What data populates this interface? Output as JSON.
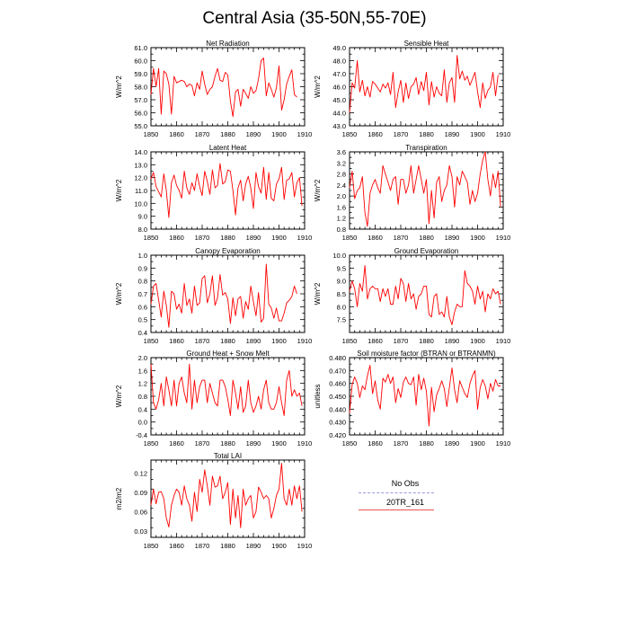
{
  "title": "Central Asia (35-50N,55-70E)",
  "legend": {
    "entries": [
      {
        "label": "No Obs",
        "color": "#9999dd",
        "dash": true
      },
      {
        "label": "20TR_161",
        "color": "#e8564f",
        "dash": false
      }
    ]
  },
  "chart_data": [
    {
      "type": "line",
      "title": "Net Radiation",
      "xlabel": "",
      "ylabel": "W/m^2",
      "xlim": [
        1850,
        1910
      ],
      "ylim": [
        55.0,
        61.0
      ],
      "xticks": [
        1850,
        1860,
        1870,
        1880,
        1890,
        1900,
        1910
      ],
      "yticks": [
        55.0,
        56.0,
        57.0,
        58.0,
        59.0,
        60.0,
        61.0
      ],
      "tick_decimals": 1,
      "series": [
        {
          "color": "#ff0000",
          "x_start": 1850,
          "x_step": 1,
          "values": [
            57.4,
            59.4,
            58.0,
            59.4,
            55.9,
            59.2,
            59.0,
            58.2,
            55.9,
            58.8,
            58.3,
            58.4,
            58.5,
            58.4,
            58.0,
            58.2,
            58.1,
            57.3,
            58.3,
            57.8,
            59.2,
            58.2,
            57.4,
            57.8,
            58.0,
            58.8,
            59.4,
            58.5,
            58.4,
            59.1,
            58.9,
            56.9,
            55.7,
            57.6,
            57.8,
            56.5,
            57.8,
            57.5,
            57.1,
            58.0,
            57.5,
            57.7,
            58.6,
            60.0,
            60.2,
            57.3,
            58.3,
            57.8,
            57.2,
            57.9,
            59.6,
            56.2,
            57.0,
            58.2,
            58.8,
            59.3,
            57.4,
            57.2
          ]
        }
      ]
    },
    {
      "type": "line",
      "title": "Sensible Heat",
      "xlabel": "",
      "ylabel": "W/m^2",
      "xlim": [
        1850,
        1910
      ],
      "ylim": [
        43.0,
        49.0
      ],
      "xticks": [
        1850,
        1860,
        1870,
        1880,
        1890,
        1900,
        1910
      ],
      "yticks": [
        43.0,
        44.0,
        45.0,
        46.0,
        47.0,
        48.0,
        49.0
      ],
      "tick_decimals": 1,
      "series": [
        {
          "color": "#ff0000",
          "x_start": 1850,
          "x_step": 1,
          "values": [
            44.0,
            46.3,
            45.9,
            48.0,
            45.6,
            46.5,
            45.3,
            46.0,
            45.2,
            46.4,
            46.2,
            45.9,
            45.6,
            46.2,
            45.9,
            46.3,
            45.4,
            47.1,
            44.4,
            45.6,
            46.5,
            44.8,
            46.3,
            45.1,
            46.0,
            46.2,
            46.7,
            45.4,
            46.4,
            45.7,
            47.1,
            44.6,
            46.4,
            45.2,
            46.0,
            45.5,
            45.3,
            47.3,
            44.8,
            46.3,
            46.7,
            44.8,
            48.4,
            46.6,
            47.2,
            46.5,
            46.8,
            46.1,
            46.6,
            47.1,
            45.6,
            44.4,
            46.3,
            45.1,
            45.7,
            46.0,
            47.1,
            45.3,
            46.9
          ]
        }
      ]
    },
    {
      "type": "line",
      "title": "Latent Heat",
      "xlabel": "",
      "ylabel": "W/m^2",
      "xlim": [
        1850,
        1910
      ],
      "ylim": [
        8.0,
        14.0
      ],
      "xticks": [
        1850,
        1860,
        1870,
        1880,
        1890,
        1900,
        1910
      ],
      "yticks": [
        8.0,
        9.0,
        10.0,
        11.0,
        12.0,
        13.0,
        14.0
      ],
      "tick_decimals": 1,
      "series": [
        {
          "color": "#ff0000",
          "x_start": 1850,
          "x_step": 1,
          "values": [
            11.9,
            12.4,
            11.3,
            10.9,
            10.5,
            12.3,
            11.0,
            8.9,
            11.6,
            12.2,
            11.4,
            11.0,
            10.4,
            12.5,
            11.2,
            10.7,
            11.6,
            11.0,
            12.3,
            11.3,
            10.6,
            12.5,
            11.7,
            10.7,
            12.6,
            11.2,
            11.4,
            13.1,
            11.5,
            11.7,
            12.6,
            12.5,
            11.0,
            9.1,
            11.2,
            11.8,
            10.2,
            11.5,
            12.1,
            11.2,
            9.6,
            12.4,
            11.3,
            10.8,
            12.8,
            10.3,
            12.4,
            10.4,
            10.2,
            11.5,
            11.9,
            12.8,
            10.3,
            11.8,
            11.9,
            12.4,
            10.5,
            11.6,
            12.0,
            9.8
          ]
        }
      ]
    },
    {
      "type": "line",
      "title": "Transpiration",
      "xlabel": "",
      "ylabel": "W/m^2",
      "xlim": [
        1850,
        1910
      ],
      "ylim": [
        0.8,
        3.6
      ],
      "xticks": [
        1850,
        1860,
        1870,
        1880,
        1890,
        1900,
        1910
      ],
      "yticks": [
        0.8,
        1.2,
        1.6,
        2.0,
        2.4,
        2.8,
        3.2,
        3.6
      ],
      "tick_decimals": 1,
      "series": [
        {
          "color": "#ff0000",
          "x_start": 1850,
          "x_step": 1,
          "values": [
            2.3,
            2.9,
            1.9,
            2.2,
            2.3,
            2.7,
            1.4,
            0.9,
            2.1,
            2.4,
            2.6,
            2.3,
            2.1,
            3.1,
            2.8,
            2.5,
            2.2,
            2.6,
            2.7,
            1.7,
            2.6,
            2.6,
            2.1,
            2.4,
            3.1,
            2.1,
            2.6,
            3.1,
            2.6,
            2.1,
            2.6,
            1.0,
            2.2,
            1.2,
            2.5,
            2.7,
            1.8,
            2.2,
            2.4,
            3.1,
            2.7,
            1.6,
            2.7,
            2.4,
            2.9,
            2.7,
            2.5,
            1.7,
            2.2,
            1.8,
            2.1,
            2.8,
            3.3,
            3.6,
            2.6,
            2.0,
            2.8,
            2.3,
            2.9,
            1.6
          ]
        }
      ]
    },
    {
      "type": "line",
      "title": "Canopy Evaporation",
      "xlabel": "",
      "ylabel": "W/m^2",
      "xlim": [
        1850,
        1910
      ],
      "ylim": [
        0.4,
        1.0
      ],
      "xticks": [
        1850,
        1860,
        1870,
        1880,
        1890,
        1900,
        1910
      ],
      "yticks": [
        0.4,
        0.5,
        0.6,
        0.7,
        0.8,
        0.9,
        1.0
      ],
      "tick_decimals": 1,
      "series": [
        {
          "color": "#ff0000",
          "x_start": 1850,
          "x_step": 1,
          "values": [
            0.62,
            0.76,
            0.78,
            0.65,
            0.52,
            0.72,
            0.61,
            0.44,
            0.72,
            0.7,
            0.58,
            0.62,
            0.55,
            0.78,
            0.61,
            0.66,
            0.55,
            0.76,
            0.61,
            0.63,
            0.82,
            0.84,
            0.63,
            0.7,
            0.84,
            0.61,
            0.67,
            0.85,
            0.69,
            0.71,
            0.66,
            0.47,
            0.67,
            0.53,
            0.66,
            0.68,
            0.51,
            0.64,
            0.58,
            0.76,
            0.64,
            0.53,
            0.71,
            0.48,
            0.51,
            0.93,
            0.62,
            0.59,
            0.51,
            0.59,
            0.49,
            0.49,
            0.55,
            0.63,
            0.65,
            0.68,
            0.76,
            0.7
          ]
        }
      ]
    },
    {
      "type": "line",
      "title": "Ground Evaporation",
      "xlabel": "",
      "ylabel": "W/m^2",
      "xlim": [
        1850,
        1910
      ],
      "ylim": [
        7.0,
        10.0
      ],
      "xticks": [
        1850,
        1860,
        1870,
        1880,
        1890,
        1900,
        1910
      ],
      "yticks": [
        7.5,
        8.0,
        8.5,
        9.0,
        9.5,
        10.0
      ],
      "tick_decimals": 1,
      "series": [
        {
          "color": "#ff0000",
          "x_start": 1850,
          "x_step": 1,
          "values": [
            8.6,
            9.0,
            8.7,
            8.0,
            8.9,
            8.6,
            9.6,
            8.3,
            8.7,
            8.8,
            8.7,
            8.7,
            8.2,
            8.7,
            8.4,
            8.7,
            8.1,
            8.1,
            8.8,
            8.3,
            9.1,
            8.9,
            8.2,
            8.9,
            8.3,
            8.5,
            7.9,
            8.4,
            8.5,
            8.8,
            8.8,
            7.7,
            7.6,
            8.4,
            8.5,
            7.7,
            7.8,
            7.6,
            8.4,
            7.6,
            7.3,
            7.8,
            8.1,
            8.0,
            8.0,
            9.4,
            8.9,
            8.8,
            8.6,
            8.1,
            8.8,
            8.3,
            8.6,
            7.8,
            8.5,
            8.3,
            8.7,
            8.5,
            8.6,
            8.1
          ]
        }
      ]
    },
    {
      "type": "line",
      "title": "Ground Heat + Snow Melt",
      "xlabel": "",
      "ylabel": "W/m^2",
      "xlim": [
        1850,
        1910
      ],
      "ylim": [
        -0.4,
        2.0
      ],
      "xticks": [
        1850,
        1860,
        1870,
        1880,
        1890,
        1900,
        1910
      ],
      "yticks": [
        -0.4,
        0.0,
        0.4,
        0.8,
        1.2,
        1.6,
        2.0
      ],
      "tick_decimals": 1,
      "series": [
        {
          "color": "#ff0000",
          "x_start": 1850,
          "x_step": 1,
          "values": [
            1.8,
            0.6,
            0.4,
            0.7,
            1.2,
            0.5,
            1.4,
            1.0,
            0.5,
            1.3,
            0.5,
            1.2,
            1.4,
            0.9,
            0.6,
            1.8,
            0.4,
            1.3,
            0.6,
            1.1,
            1.3,
            1.3,
            0.6,
            1.2,
            0.9,
            0.6,
            0.5,
            1.3,
            1.3,
            1.1,
            0.7,
            0.2,
            1.3,
            0.9,
            0.4,
            1.1,
            0.3,
            0.5,
            1.3,
            0.6,
            0.3,
            0.5,
            0.8,
            0.4,
            1.0,
            1.3,
            0.6,
            0.4,
            0.4,
            0.6,
            1.1,
            0.6,
            0.2,
            1.3,
            1.6,
            0.8,
            1.0,
            0.8,
            0.9,
            0.5
          ]
        }
      ]
    },
    {
      "type": "line",
      "title": "Soil moisture factor (BTRAN or BTRANMN)",
      "xlabel": "",
      "ylabel": "unitless",
      "xlim": [
        1850,
        1910
      ],
      "ylim": [
        0.42,
        0.48
      ],
      "xticks": [
        1850,
        1860,
        1870,
        1880,
        1890,
        1900,
        1910
      ],
      "yticks": [
        0.42,
        0.43,
        0.44,
        0.45,
        0.46,
        0.47,
        0.48
      ],
      "tick_decimals": 3,
      "series": [
        {
          "color": "#ff0000",
          "x_start": 1850,
          "x_step": 1,
          "values": [
            0.437,
            0.459,
            0.465,
            0.46,
            0.449,
            0.458,
            0.455,
            0.466,
            0.474,
            0.452,
            0.462,
            0.447,
            0.44,
            0.464,
            0.461,
            0.467,
            0.46,
            0.465,
            0.445,
            0.456,
            0.449,
            0.461,
            0.465,
            0.46,
            0.459,
            0.465,
            0.443,
            0.467,
            0.455,
            0.464,
            0.454,
            0.427,
            0.457,
            0.438,
            0.451,
            0.456,
            0.462,
            0.456,
            0.442,
            0.457,
            0.472,
            0.455,
            0.445,
            0.462,
            0.457,
            0.452,
            0.449,
            0.46,
            0.466,
            0.47,
            0.44,
            0.457,
            0.463,
            0.458,
            0.448,
            0.46,
            0.454,
            0.463,
            0.458,
            0.458
          ]
        }
      ]
    },
    {
      "type": "line",
      "title": "Total LAI",
      "xlabel": "",
      "ylabel": "m2/m2",
      "xlim": [
        1850,
        1910
      ],
      "ylim": [
        0.02,
        0.14
      ],
      "xticks": [
        1850,
        1860,
        1870,
        1880,
        1890,
        1900,
        1910
      ],
      "yticks": [
        0.03,
        0.06,
        0.09,
        0.12
      ],
      "tick_decimals": 2,
      "series": [
        {
          "color": "#ff0000",
          "x_start": 1850,
          "x_step": 1,
          "values": [
            0.07,
            0.095,
            0.072,
            0.09,
            0.091,
            0.08,
            0.05,
            0.036,
            0.07,
            0.085,
            0.095,
            0.09,
            0.07,
            0.1,
            0.08,
            0.07,
            0.045,
            0.09,
            0.06,
            0.11,
            0.09,
            0.125,
            0.1,
            0.07,
            0.115,
            0.098,
            0.1,
            0.115,
            0.08,
            0.09,
            0.105,
            0.04,
            0.095,
            0.05,
            0.085,
            0.035,
            0.095,
            0.07,
            0.08,
            0.085,
            0.05,
            0.06,
            0.098,
            0.09,
            0.08,
            0.085,
            0.08,
            0.05,
            0.065,
            0.085,
            0.095,
            0.135,
            0.08,
            0.07,
            0.095,
            0.07,
            0.1,
            0.08,
            0.1,
            0.06
          ]
        }
      ]
    }
  ]
}
